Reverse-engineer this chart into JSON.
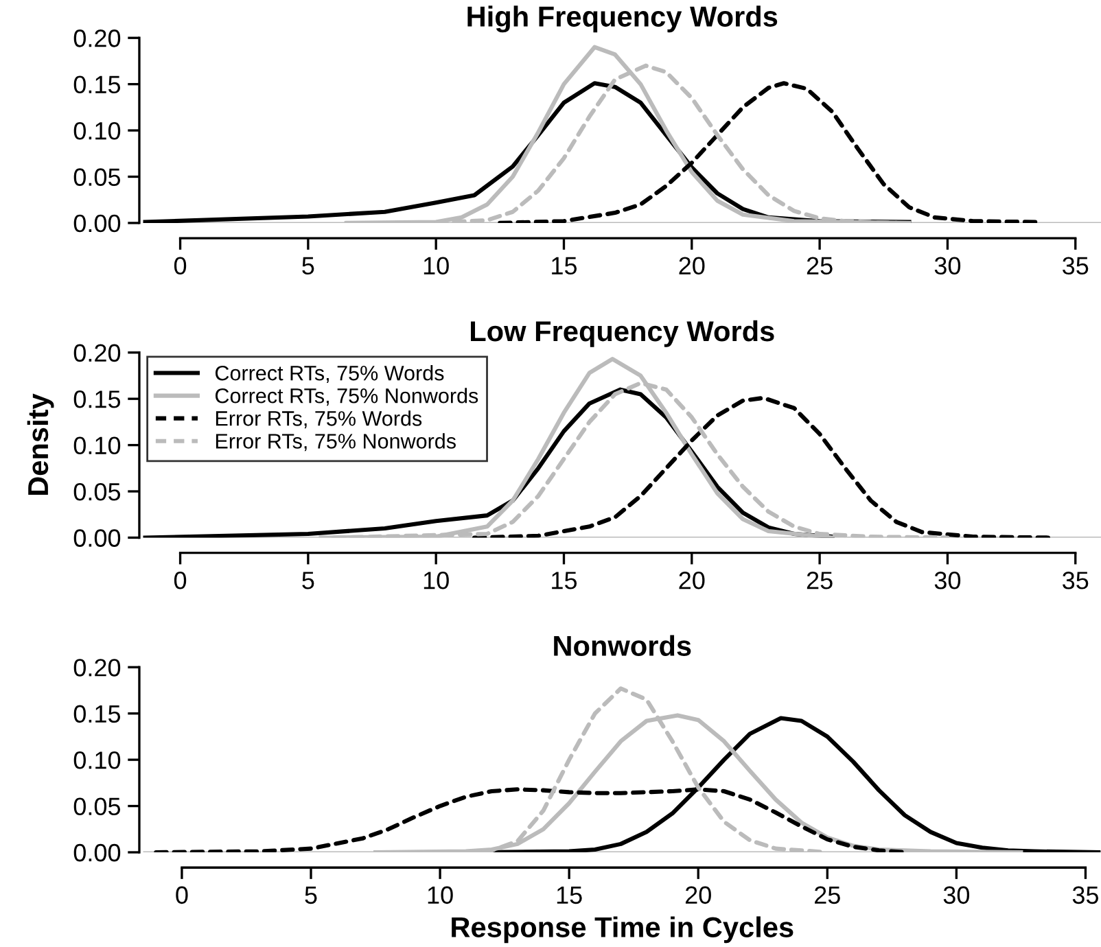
{
  "chart_data": [
    {
      "type": "line",
      "title": "High Frequency Words",
      "xlim": [
        -1.45,
        36
      ],
      "ylim": [
        0,
        0.2
      ],
      "xticks": [
        0,
        5,
        10,
        15,
        20,
        25,
        30,
        35
      ],
      "yticks": [
        {
          "value": 0,
          "label": "0.00"
        },
        {
          "value": 0.05,
          "label": "0.05"
        },
        {
          "value": 0.1,
          "label": "0.10"
        },
        {
          "value": 0.15,
          "label": "0.15"
        },
        {
          "value": 0.2,
          "label": "0.20"
        }
      ],
      "grid": false,
      "legend": false,
      "ref_lines": [
        {
          "axis": "y",
          "value": 0,
          "label": null,
          "color": "#bbbbbb"
        }
      ],
      "series": [
        {
          "color": "#000000",
          "line_style": "solid",
          "x": [
            -1.4,
            5,
            8,
            10,
            11.5,
            13,
            14,
            15,
            16.2,
            17,
            18,
            19,
            20,
            21,
            22,
            23,
            25,
            28.5
          ],
          "values": [
            0.001,
            0.007,
            0.012,
            0.022,
            0.03,
            0.061,
            0.095,
            0.13,
            0.151,
            0.147,
            0.13,
            0.095,
            0.06,
            0.032,
            0.015,
            0.006,
            0.002,
            0.001
          ]
        },
        {
          "color": "#bbbbbb",
          "line_style": "solid",
          "x": [
            6.5,
            10,
            11,
            12,
            13,
            14,
            15,
            16.2,
            17,
            18,
            19,
            20,
            21,
            22,
            24,
            28.5
          ],
          "values": [
            0,
            0.001,
            0.006,
            0.02,
            0.05,
            0.098,
            0.15,
            0.19,
            0.182,
            0.15,
            0.1,
            0.055,
            0.024,
            0.009,
            0.002,
            0
          ]
        },
        {
          "color": "#000000",
          "line_style": "dashed",
          "x": [
            12.5,
            15,
            17,
            18,
            19,
            20,
            21,
            22,
            23,
            23.6,
            24.5,
            25.5,
            26.5,
            27.5,
            28.5,
            29.5,
            31,
            33.5
          ],
          "values": [
            0,
            0.002,
            0.011,
            0.02,
            0.04,
            0.065,
            0.095,
            0.125,
            0.146,
            0.151,
            0.145,
            0.12,
            0.08,
            0.042,
            0.017,
            0.006,
            0.002,
            0.001
          ]
        },
        {
          "color": "#bbbbbb",
          "line_style": "dashed",
          "x": [
            10,
            12,
            13,
            14,
            15,
            16,
            17,
            18.2,
            19,
            20,
            21,
            22,
            23,
            24,
            25,
            26,
            28
          ],
          "values": [
            0,
            0.003,
            0.012,
            0.035,
            0.07,
            0.115,
            0.155,
            0.17,
            0.163,
            0.135,
            0.095,
            0.058,
            0.03,
            0.013,
            0.005,
            0.002,
            0
          ]
        }
      ]
    },
    {
      "type": "line",
      "title": "Low Frequency Words",
      "ylabel": "Density",
      "xlim": [
        -1.45,
        36
      ],
      "ylim": [
        0,
        0.2
      ],
      "xticks": [
        0,
        5,
        10,
        15,
        20,
        25,
        30,
        35
      ],
      "yticks": [
        {
          "value": 0,
          "label": "0.00"
        },
        {
          "value": 0.05,
          "label": "0.05"
        },
        {
          "value": 0.1,
          "label": "0.10"
        },
        {
          "value": 0.15,
          "label": "0.15"
        },
        {
          "value": 0.2,
          "label": "0.20"
        }
      ],
      "grid": false,
      "legend": "top left",
      "ref_lines": [
        {
          "axis": "y",
          "value": 0,
          "label": null,
          "color": "#bbbbbb"
        }
      ],
      "series": [
        {
          "name": "Correct RTs, 75% Words",
          "color": "#000000",
          "line_style": "solid",
          "x": [
            -1.4,
            5,
            8,
            10,
            12,
            13,
            14,
            15,
            16,
            17.2,
            18,
            19,
            20,
            21,
            22,
            23,
            24,
            25.5
          ],
          "values": [
            0,
            0.004,
            0.01,
            0.018,
            0.024,
            0.04,
            0.075,
            0.115,
            0.145,
            0.16,
            0.155,
            0.13,
            0.093,
            0.055,
            0.027,
            0.011,
            0.004,
            0.001
          ]
        },
        {
          "name": "Correct RTs, 75% Nonwords",
          "color": "#bbbbbb",
          "line_style": "solid",
          "x": [
            5.5,
            10,
            12,
            13,
            14,
            15,
            16,
            16.9,
            18,
            19,
            20,
            21,
            22,
            23,
            25.5
          ],
          "values": [
            0,
            0.001,
            0.012,
            0.04,
            0.085,
            0.135,
            0.178,
            0.193,
            0.175,
            0.135,
            0.09,
            0.048,
            0.02,
            0.007,
            0
          ]
        },
        {
          "name": "Error RTs, 75% Words",
          "color": "#000000",
          "line_style": "dashed",
          "x": [
            11.5,
            14,
            16,
            17,
            18,
            19,
            20,
            21,
            22,
            22.8,
            24,
            25,
            26,
            27,
            28,
            29,
            31,
            34
          ],
          "values": [
            0,
            0.002,
            0.012,
            0.022,
            0.045,
            0.075,
            0.105,
            0.132,
            0.148,
            0.151,
            0.14,
            0.112,
            0.075,
            0.04,
            0.017,
            0.006,
            0.001,
            0
          ]
        },
        {
          "name": "Error RTs, 75% Nonwords",
          "color": "#bbbbbb",
          "line_style": "dashed",
          "x": [
            6,
            12,
            13,
            14,
            15,
            16,
            17,
            18,
            19,
            20,
            21,
            22,
            23,
            24,
            25,
            27,
            30
          ],
          "values": [
            0,
            0.004,
            0.017,
            0.045,
            0.085,
            0.125,
            0.155,
            0.167,
            0.16,
            0.13,
            0.09,
            0.055,
            0.028,
            0.012,
            0.004,
            0.001,
            0
          ]
        }
      ]
    },
    {
      "type": "line",
      "title": "Nonwords",
      "xlabel": "Response Time in Cycles",
      "xlim": [
        -1.5,
        35.6
      ],
      "ylim": [
        0,
        0.2
      ],
      "xticks": [
        0,
        5,
        10,
        15,
        20,
        25,
        30,
        35
      ],
      "yticks": [
        {
          "value": 0,
          "label": "0.00"
        },
        {
          "value": 0.05,
          "label": "0.05"
        },
        {
          "value": 0.1,
          "label": "0.10"
        },
        {
          "value": 0.15,
          "label": "0.15"
        },
        {
          "value": 0.2,
          "label": "0.20"
        }
      ],
      "grid": false,
      "legend": false,
      "ref_lines": [
        {
          "axis": "y",
          "value": 0,
          "label": null,
          "color": "#bbbbbb"
        }
      ],
      "series": [
        {
          "color": "#000000",
          "line_style": "solid",
          "x": [
            11.5,
            15,
            16,
            17,
            18,
            19,
            20,
            21,
            22,
            23.2,
            24,
            25,
            26,
            27,
            28,
            29,
            30,
            31,
            32,
            33,
            35.5
          ],
          "values": [
            0,
            0.001,
            0.003,
            0.009,
            0.022,
            0.042,
            0.07,
            0.1,
            0.128,
            0.145,
            0.142,
            0.125,
            0.098,
            0.067,
            0.04,
            0.022,
            0.01,
            0.005,
            0.002,
            0.001,
            0
          ]
        },
        {
          "color": "#bbbbbb",
          "line_style": "solid",
          "x": [
            7.5,
            11,
            12,
            13,
            14,
            15,
            16,
            17,
            18,
            19.2,
            20,
            21,
            22,
            23,
            24,
            25,
            26,
            27,
            29,
            32.5
          ],
          "values": [
            0,
            0.001,
            0.003,
            0.009,
            0.025,
            0.053,
            0.087,
            0.12,
            0.142,
            0.148,
            0.143,
            0.12,
            0.088,
            0.057,
            0.032,
            0.016,
            0.007,
            0.003,
            0.001,
            0
          ]
        },
        {
          "color": "#000000",
          "line_style": "dashed",
          "x": [
            -1,
            3,
            5,
            7,
            8,
            9,
            10,
            11,
            12,
            13,
            14,
            15,
            16,
            17,
            18,
            19,
            20,
            21,
            22,
            23,
            24,
            25,
            26,
            27,
            28
          ],
          "values": [
            0,
            0.001,
            0.004,
            0.015,
            0.025,
            0.038,
            0.05,
            0.06,
            0.066,
            0.068,
            0.067,
            0.065,
            0.064,
            0.064,
            0.065,
            0.066,
            0.068,
            0.066,
            0.057,
            0.043,
            0.028,
            0.014,
            0.006,
            0.002,
            0
          ]
        },
        {
          "color": "#bbbbbb",
          "line_style": "dashed",
          "x": [
            11,
            12,
            13,
            14,
            15,
            16,
            17,
            18,
            19,
            20,
            21,
            22,
            23,
            25
          ],
          "values": [
            0,
            0.002,
            0.012,
            0.045,
            0.1,
            0.15,
            0.177,
            0.165,
            0.12,
            0.07,
            0.033,
            0.013,
            0.004,
            0
          ]
        }
      ]
    }
  ]
}
